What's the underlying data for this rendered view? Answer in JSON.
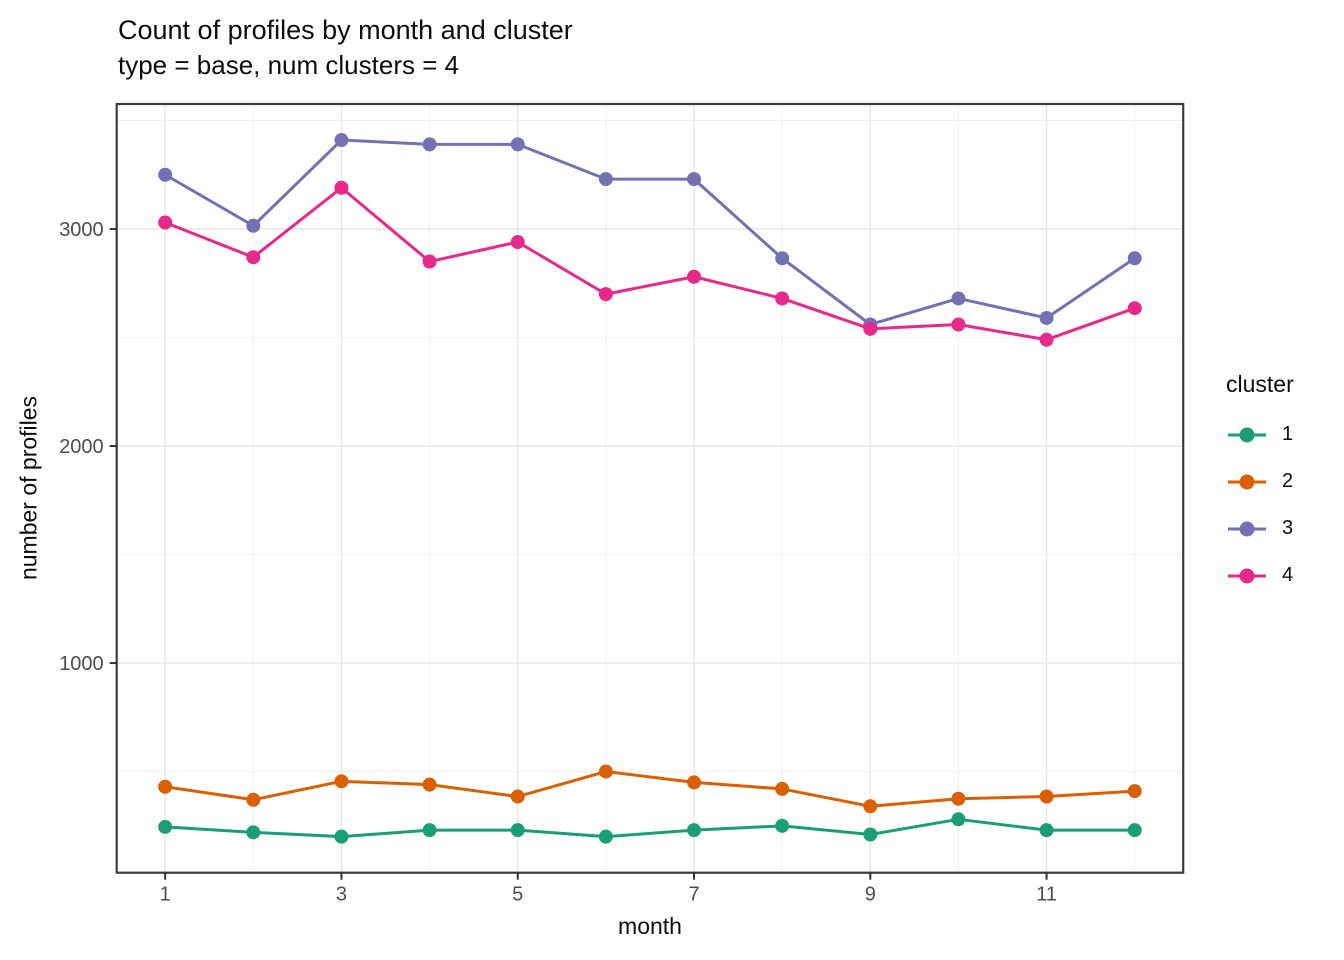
{
  "chart_data": {
    "type": "line",
    "title": "Count of profiles by month and cluster",
    "subtitle": "type = base, num clusters = 4",
    "xlabel": "month",
    "ylabel": "number of profiles",
    "legend_title": "cluster",
    "legend_position": "right",
    "x": [
      1,
      2,
      3,
      4,
      5,
      6,
      7,
      8,
      9,
      10,
      11,
      12
    ],
    "x_major_ticks": [
      1,
      3,
      5,
      7,
      9,
      11
    ],
    "x_minor_ticks": [
      2,
      4,
      6,
      8,
      10,
      12
    ],
    "y_major_ticks": [
      1000,
      2000,
      3000
    ],
    "y_minor_ticks": [
      500,
      1500,
      2500,
      3500
    ],
    "xlim": [
      0.45,
      12.55
    ],
    "ylim": [
      34,
      3576
    ],
    "grid": "white panel, light gray major and minor gridlines, dark gray panel border (ggplot theme_bw style)",
    "marker": "filled circle on each point, lines connecting",
    "series": [
      {
        "name": "1",
        "color": "#1B9E77",
        "values": [
          245,
          220,
          200,
          230,
          230,
          200,
          230,
          250,
          210,
          280,
          230,
          230
        ]
      },
      {
        "name": "2",
        "color": "#D95F02",
        "values": [
          430,
          370,
          455,
          440,
          385,
          500,
          450,
          420,
          340,
          375,
          385,
          410
        ]
      },
      {
        "name": "3",
        "color": "#7570B3",
        "values": [
          3250,
          3015,
          3410,
          3390,
          3390,
          3230,
          3230,
          2865,
          2560,
          2680,
          2590,
          2865
        ]
      },
      {
        "name": "4",
        "color": "#E7298A",
        "values": [
          3030,
          2870,
          3190,
          2850,
          2940,
          2700,
          2780,
          2680,
          2540,
          2560,
          2490,
          2635
        ]
      }
    ],
    "style_colors": {
      "panel_border": "#3c3c3c",
      "major_grid": "#e6e6e6",
      "minor_grid": "#f0f0f0",
      "tick_mark": "#333333",
      "tick_label": "#4d4d4d",
      "text": "#0d0d0d",
      "background": "#ffffff"
    }
  }
}
